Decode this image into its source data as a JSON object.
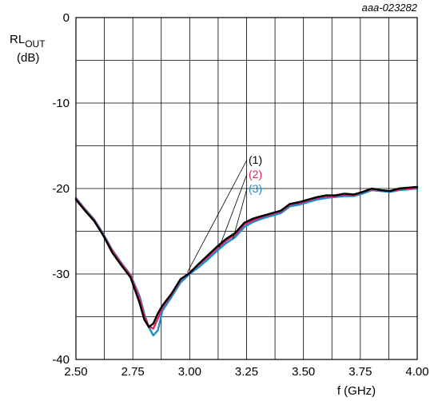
{
  "figure_id": "aaa-023282",
  "chart_data": {
    "type": "line",
    "ylabel_main": "RL",
    "ylabel_sub": "OUT",
    "ylabel_unit": "(dB)",
    "xlabel": "f (GHz)",
    "xlim": [
      2.5,
      4.0
    ],
    "ylim": [
      -40,
      0
    ],
    "x_ticks": [
      "2.50",
      "2.75",
      "3.00",
      "3.25",
      "3.50",
      "3.75",
      "4.00"
    ],
    "x_tick_values": [
      2.5,
      2.75,
      3.0,
      3.25,
      3.5,
      3.75,
      4.0
    ],
    "y_ticks": [
      "0",
      "-10",
      "-20",
      "-30",
      "-40"
    ],
    "y_tick_values": [
      0,
      -10,
      -20,
      -30,
      -40
    ],
    "grid": true,
    "series": [
      {
        "name": "(1)",
        "color": "#000000",
        "x": [
          2.5,
          2.54,
          2.58,
          2.62,
          2.66,
          2.7,
          2.74,
          2.78,
          2.8,
          2.82,
          2.84,
          2.86,
          2.88,
          2.92,
          2.96,
          3.0,
          3.04,
          3.08,
          3.12,
          3.16,
          3.2,
          3.24,
          3.28,
          3.32,
          3.36,
          3.4,
          3.44,
          3.48,
          3.52,
          3.56,
          3.6,
          3.64,
          3.68,
          3.72,
          3.76,
          3.8,
          3.84,
          3.88,
          3.92,
          3.96,
          4.0
        ],
        "y": [
          -21.3,
          -22.6,
          -23.8,
          -25.5,
          -27.5,
          -29.0,
          -30.4,
          -33.4,
          -35.3,
          -36.2,
          -35.8,
          -34.6,
          -33.7,
          -32.3,
          -30.6,
          -29.9,
          -28.8,
          -27.8,
          -26.8,
          -25.9,
          -25.2,
          -24.0,
          -23.5,
          -23.2,
          -22.9,
          -22.6,
          -21.8,
          -21.6,
          -21.3,
          -21.0,
          -20.8,
          -20.8,
          -20.6,
          -20.7,
          -20.4,
          -20.0,
          -20.2,
          -20.3,
          -20.0,
          -19.9,
          -19.8
        ]
      },
      {
        "name": "(2)",
        "color": "#e0245e",
        "x": [
          2.5,
          2.54,
          2.58,
          2.62,
          2.66,
          2.7,
          2.74,
          2.78,
          2.8,
          2.82,
          2.84,
          2.86,
          2.88,
          2.92,
          2.96,
          3.0,
          3.04,
          3.08,
          3.12,
          3.16,
          3.2,
          3.24,
          3.28,
          3.32,
          3.36,
          3.4,
          3.44,
          3.48,
          3.52,
          3.56,
          3.6,
          3.64,
          3.68,
          3.72,
          3.76,
          3.8,
          3.84,
          3.88,
          3.92,
          3.96,
          4.0
        ],
        "y": [
          -21.2,
          -22.5,
          -23.7,
          -25.4,
          -27.3,
          -28.8,
          -30.2,
          -32.9,
          -34.9,
          -36.1,
          -36.4,
          -35.2,
          -33.9,
          -32.4,
          -30.7,
          -29.8,
          -28.9,
          -28.0,
          -27.0,
          -26.1,
          -25.4,
          -24.2,
          -23.7,
          -23.3,
          -23.0,
          -22.7,
          -21.9,
          -21.7,
          -21.4,
          -21.1,
          -20.9,
          -20.9,
          -20.7,
          -20.8,
          -20.4,
          -20.1,
          -20.2,
          -20.3,
          -20.1,
          -20.0,
          -19.9
        ]
      },
      {
        "name": "(3)",
        "color": "#1a8fd0",
        "x": [
          2.5,
          2.54,
          2.58,
          2.62,
          2.66,
          2.7,
          2.74,
          2.78,
          2.8,
          2.82,
          2.84,
          2.86,
          2.88,
          2.92,
          2.96,
          3.0,
          3.04,
          3.08,
          3.12,
          3.16,
          3.2,
          3.24,
          3.28,
          3.32,
          3.36,
          3.4,
          3.44,
          3.48,
          3.52,
          3.56,
          3.6,
          3.64,
          3.68,
          3.72,
          3.76,
          3.8,
          3.84,
          3.88,
          3.92,
          3.96,
          4.0
        ],
        "y": [
          -21.1,
          -22.4,
          -23.6,
          -25.3,
          -27.2,
          -28.7,
          -30.1,
          -32.6,
          -34.6,
          -36.2,
          -37.2,
          -36.6,
          -34.3,
          -32.7,
          -31.0,
          -30.0,
          -29.2,
          -28.3,
          -27.3,
          -26.4,
          -25.7,
          -24.5,
          -23.9,
          -23.5,
          -23.2,
          -22.9,
          -22.1,
          -21.9,
          -21.6,
          -21.3,
          -21.1,
          -21.0,
          -20.9,
          -20.9,
          -20.6,
          -20.2,
          -20.3,
          -20.4,
          -20.2,
          -20.1,
          -20.0
        ]
      }
    ],
    "legend": [
      {
        "label": "(1)",
        "color": "#000000",
        "pointer_to": {
          "x": 2.99,
          "y": -29.8
        }
      },
      {
        "label": "(2)",
        "color": "#e0245e",
        "pointer_to": {
          "x": 3.13,
          "y": -26.9
        }
      },
      {
        "label": "(3)",
        "color": "#1a8fd0",
        "pointer_to": {
          "x": 3.19,
          "y": -25.9
        }
      }
    ]
  }
}
